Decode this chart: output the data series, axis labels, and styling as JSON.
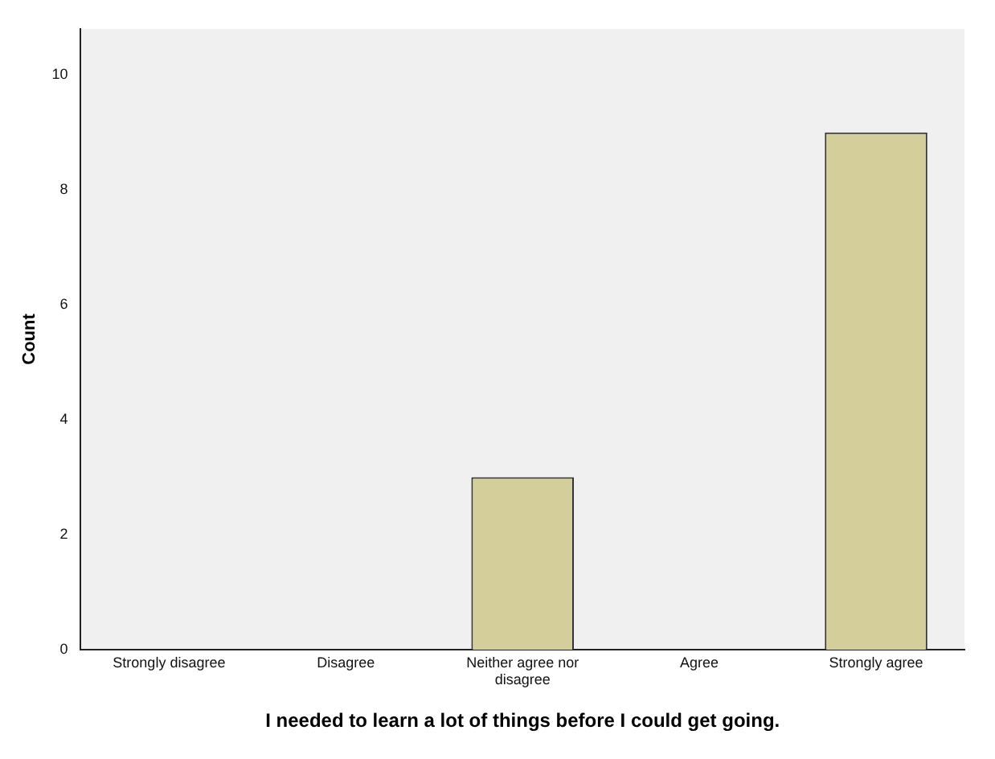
{
  "chart_data": {
    "type": "bar",
    "xlabel": "I needed to learn a lot of things before I could get going.",
    "ylabel": "Count",
    "categories": [
      "Strongly disagree",
      "Disagree",
      "Neither agree nor disagree",
      "Agree",
      "Strongly agree"
    ],
    "values": [
      0,
      0,
      3,
      0,
      9
    ],
    "color": "#d4cf9a",
    "ylim": [
      0,
      10.8
    ],
    "yticks": [
      0,
      2,
      4,
      6,
      8,
      10
    ],
    "grid": false,
    "legend": false
  }
}
